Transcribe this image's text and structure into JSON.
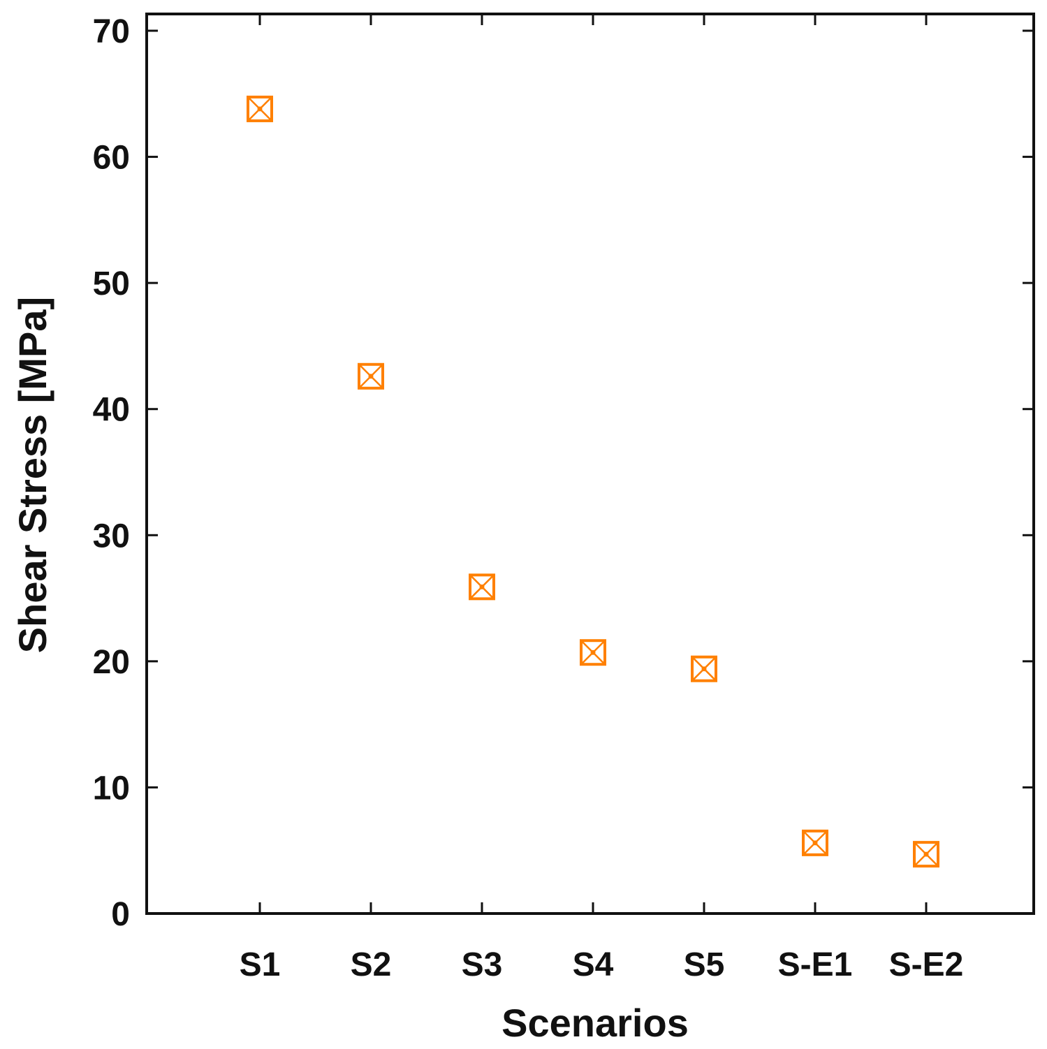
{
  "chart_data": {
    "type": "scatter",
    "title": "",
    "xlabel": "Scenarios",
    "ylabel": "Shear Stress [MPa]",
    "categories": [
      "S1",
      "S2",
      "S3",
      "S4",
      "S5",
      "S-E1",
      "S-E2"
    ],
    "values": [
      63.8,
      42.6,
      25.9,
      20.7,
      19.4,
      5.6,
      4.7
    ],
    "ylim": [
      0,
      71.3
    ],
    "yticks": [
      "0",
      "10",
      "20",
      "30",
      "40",
      "50",
      "60",
      "70"
    ],
    "grid": false,
    "legend": "none",
    "marker": "boxed-x",
    "color": "#FF8000"
  }
}
